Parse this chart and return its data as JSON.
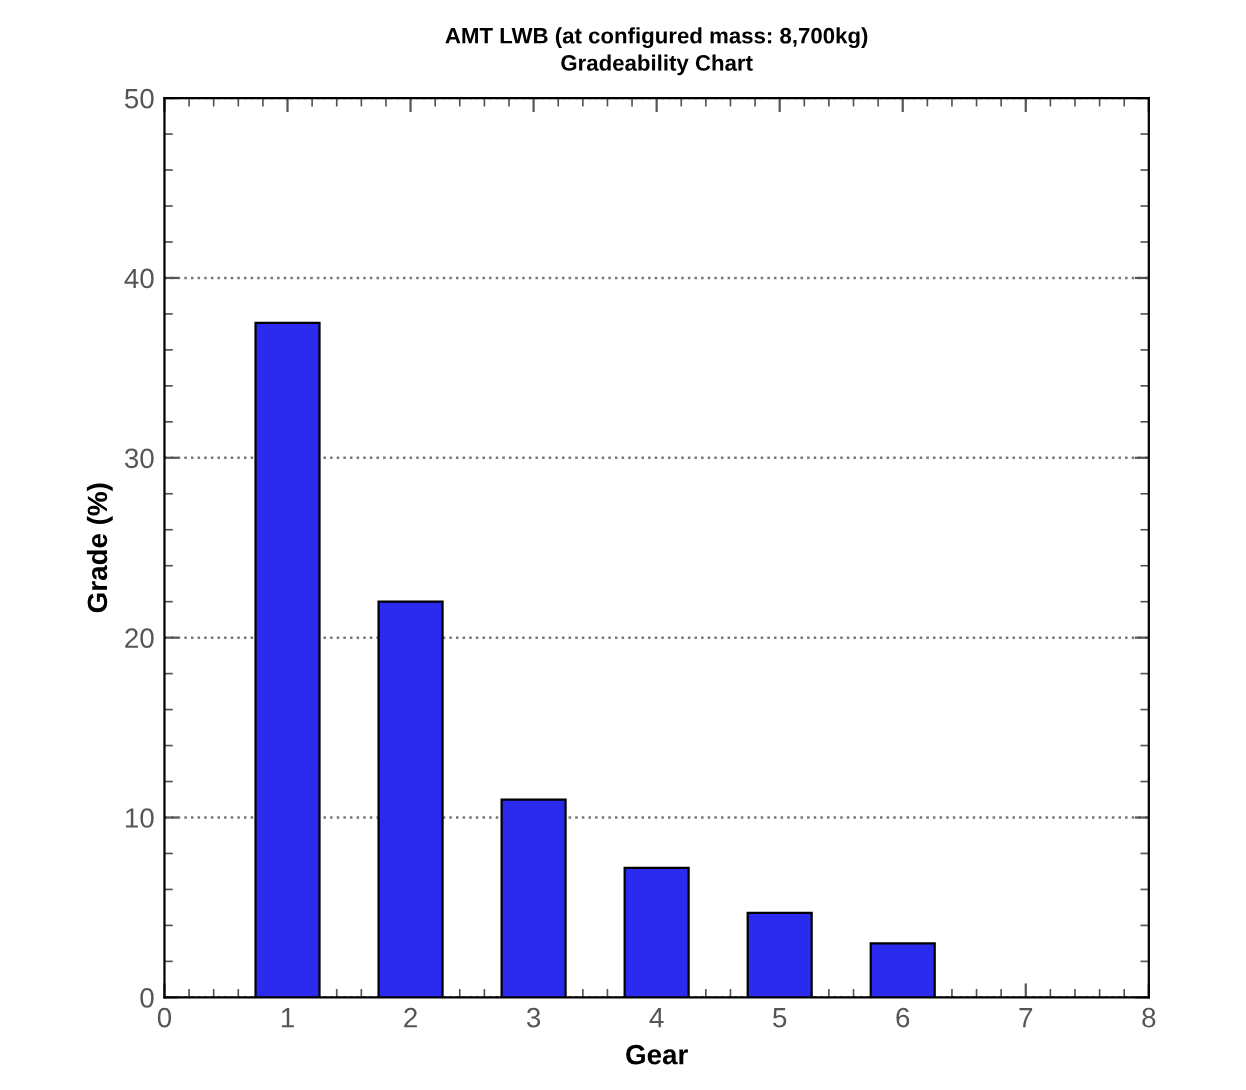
{
  "chart_data": {
    "type": "bar",
    "title": "AMT LWB (at configured mass: 8,700kg)",
    "subtitle": "Gradeability Chart",
    "xlabel": "Gear",
    "ylabel": "Grade (%)",
    "x": [
      1,
      2,
      3,
      4,
      5,
      6
    ],
    "values": [
      37.5,
      22,
      11,
      7.2,
      4.7,
      3.0
    ],
    "color": "#2b2bf0",
    "xlim": [
      0,
      8
    ],
    "xticks": [
      0,
      1,
      2,
      3,
      4,
      5,
      6,
      7,
      8
    ],
    "ylim": [
      0,
      50
    ],
    "yticks": [
      0,
      10,
      20,
      30,
      40,
      50
    ],
    "grid": "y"
  }
}
